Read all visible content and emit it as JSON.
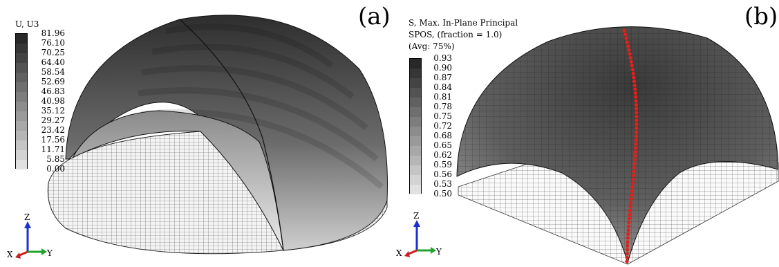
{
  "panel_a": {
    "letter": "(a)",
    "legend": {
      "title_line1": "U, U3",
      "values": [
        "81.96",
        "76.10",
        "70.25",
        "64.40",
        "58.54",
        "52.69",
        "46.83",
        "40.98",
        "35.12",
        "29.27",
        "23.42",
        "17.56",
        "11.71",
        "5.85",
        "0.00"
      ]
    },
    "triad": {
      "z": "Z",
      "x": "X",
      "y": "Y"
    }
  },
  "panel_b": {
    "letter": "(b)",
    "legend": {
      "title_line1": "S, Max. In-Plane Principal",
      "title_line2": "SPOS, (fraction = 1.0)",
      "title_line3": "(Avg: 75%)",
      "values": [
        "0.93",
        "0.90",
        "0.87",
        "0.84",
        "0.81",
        "0.78",
        "0.75",
        "0.72",
        "0.68",
        "0.65",
        "0.62",
        "0.59",
        "0.56",
        "0.53",
        "0.50"
      ]
    },
    "triad": {
      "z": "Z",
      "x": "X",
      "y": "Y"
    }
  },
  "colors": {
    "contour_dark": "#2b2b2b",
    "contour_light": "#e6e6e6",
    "highlight_dots": "#e0201b",
    "triad_z": "#1c2fd1",
    "triad_x": "#c81e1e",
    "triad_y": "#1fa32b"
  }
}
